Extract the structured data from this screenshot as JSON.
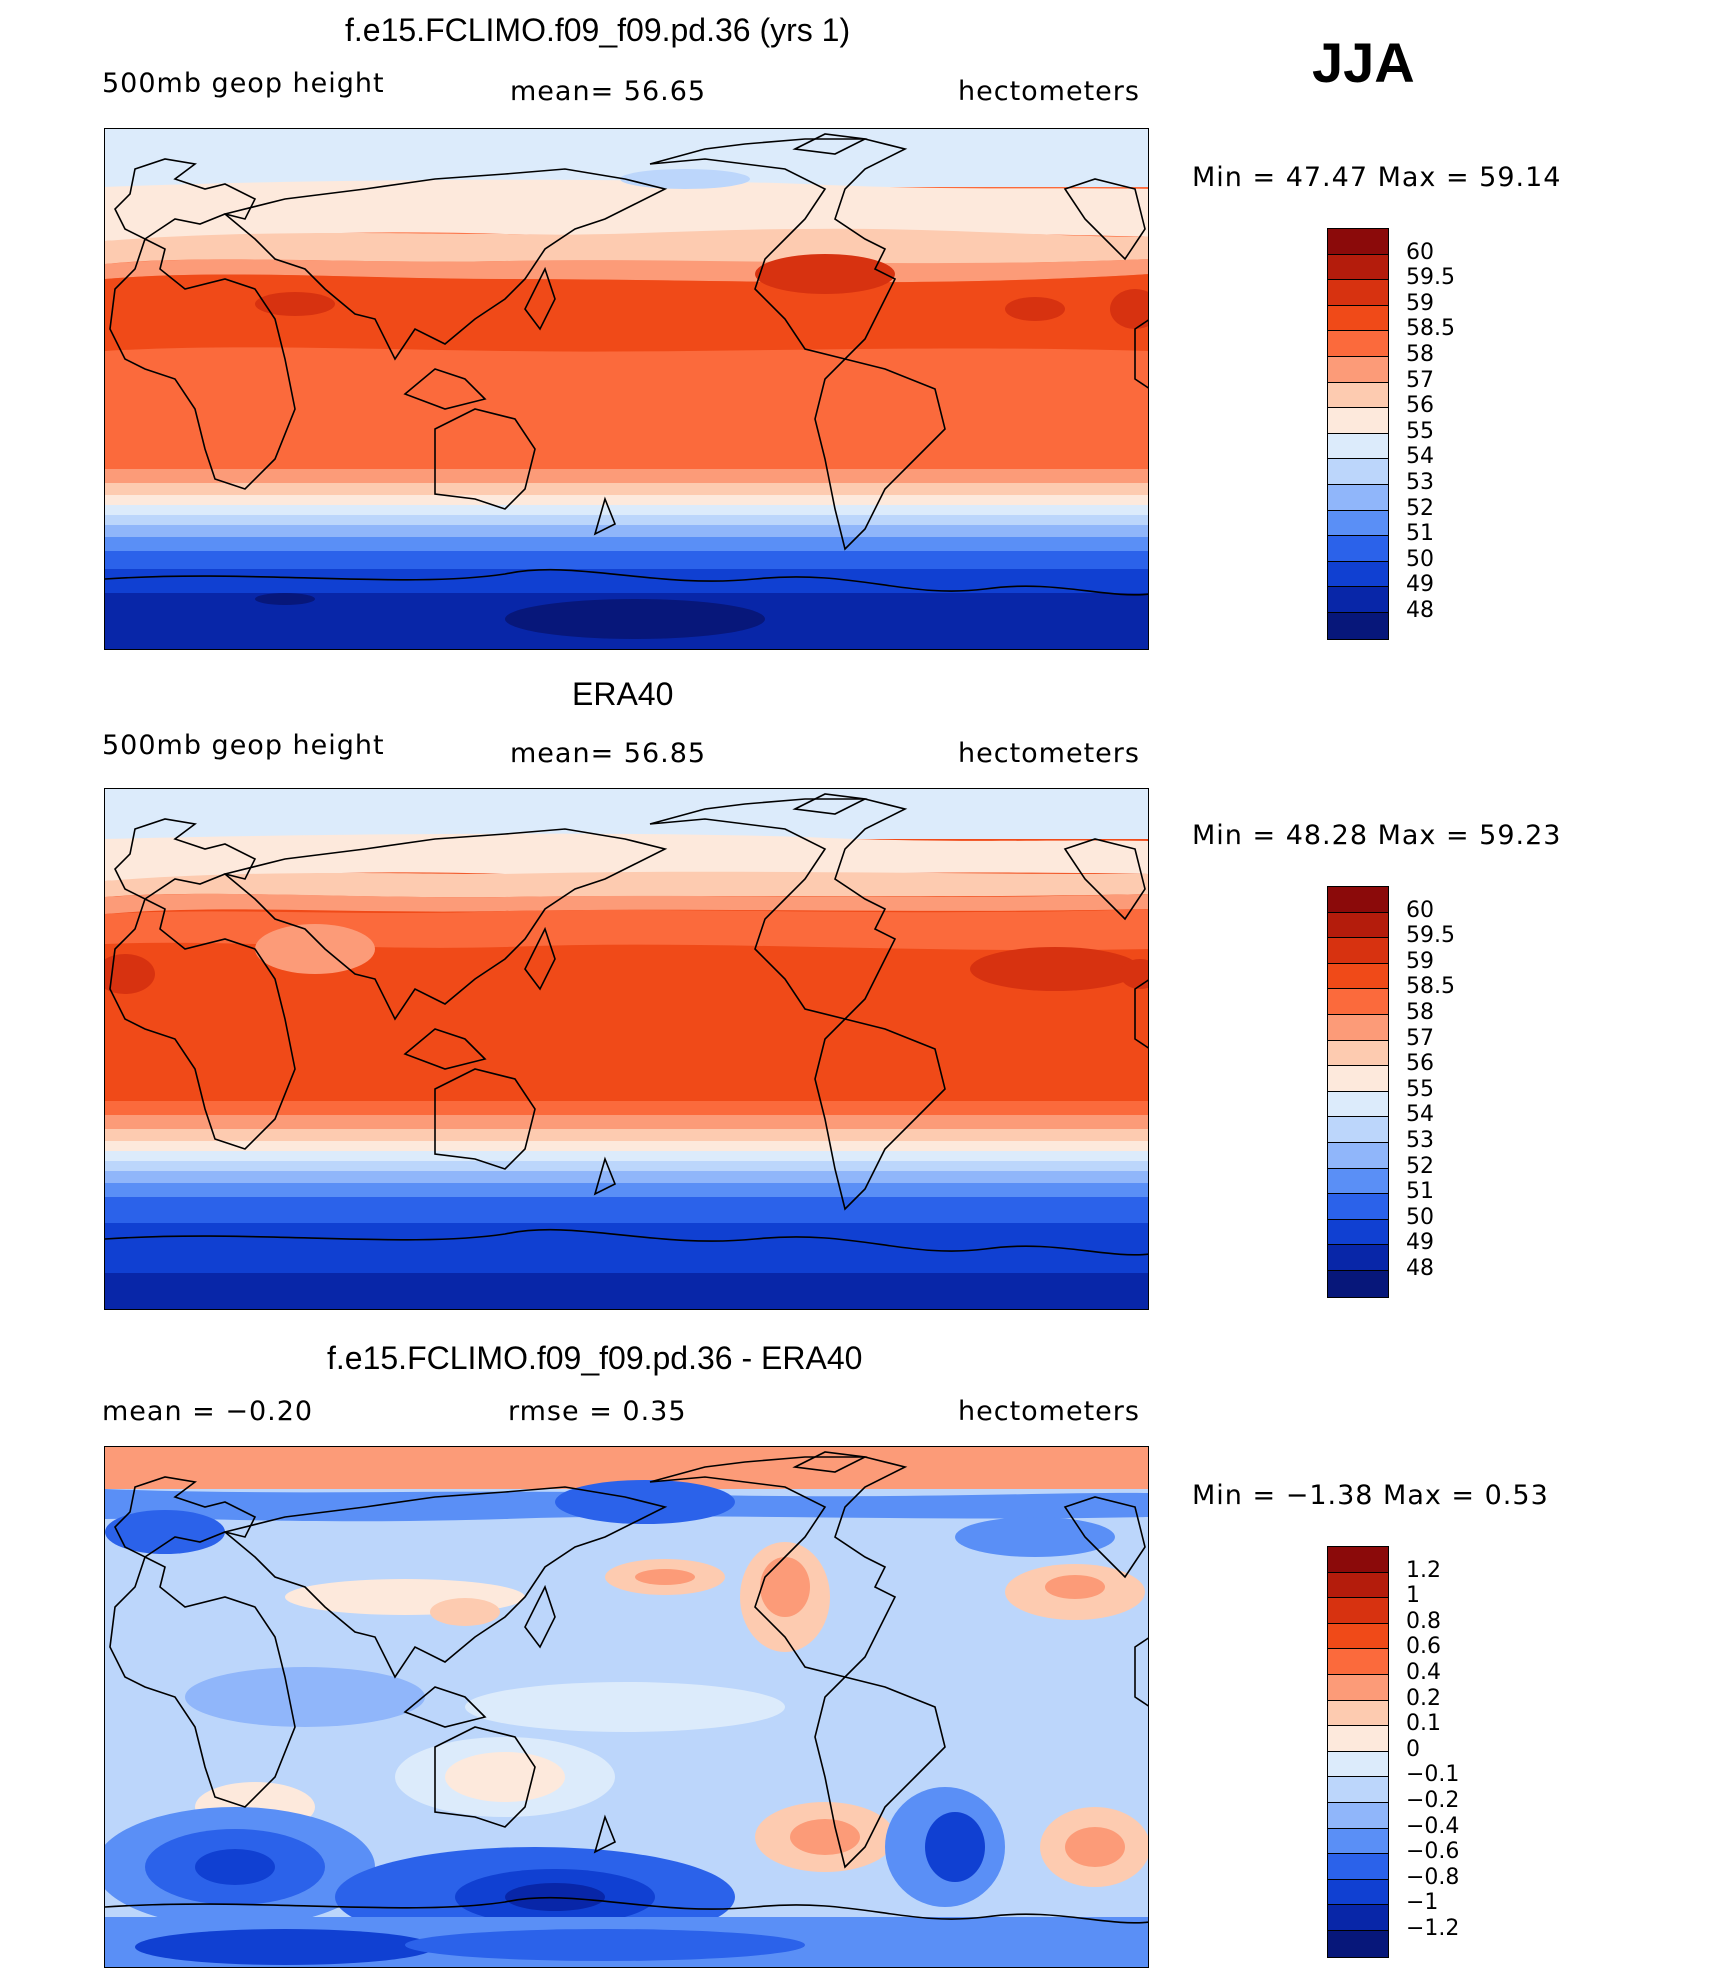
{
  "season": "JJA",
  "units": "hectometers",
  "panels": [
    {
      "title": "f.e15.FCLIMO.f09_f09.pd.36 (yrs 1)",
      "left_label": "500mb  geop  height",
      "center_label": "mean=   56.65",
      "right_label": "hectometers",
      "minmax": "Min =    47.47  Max =    59.14",
      "levels": [
        "60",
        "59.5",
        "59",
        "58.5",
        "58",
        "57",
        "56",
        "55",
        "54",
        "53",
        "52",
        "51",
        "50",
        "49",
        "48"
      ],
      "colors": [
        "#8b0a0a",
        "#b41c0c",
        "#d73210",
        "#f04a18",
        "#fb6a3c",
        "#fc9b78",
        "#fdcbb0",
        "#fde9dc",
        "#dcebfb",
        "#bcd6fb",
        "#90b6fa",
        "#5a8ff6",
        "#2b62ea",
        "#1040d2",
        "#0826a8",
        "#07177a"
      ]
    },
    {
      "title": "ERA40",
      "left_label": "500mb  geop  height",
      "center_label": "mean=   56.85",
      "right_label": "hectometers",
      "minmax": "Min =    48.28  Max =    59.23",
      "levels": [
        "60",
        "59.5",
        "59",
        "58.5",
        "58",
        "57",
        "56",
        "55",
        "54",
        "53",
        "52",
        "51",
        "50",
        "49",
        "48"
      ],
      "colors": [
        "#8b0a0a",
        "#b41c0c",
        "#d73210",
        "#f04a18",
        "#fb6a3c",
        "#fc9b78",
        "#fdcbb0",
        "#fde9dc",
        "#dcebfb",
        "#bcd6fb",
        "#90b6fa",
        "#5a8ff6",
        "#2b62ea",
        "#1040d2",
        "#0826a8",
        "#07177a"
      ]
    },
    {
      "title": "f.e15.FCLIMO.f09_f09.pd.36 - ERA40",
      "left_label": "mean =    −0.20",
      "center_label": "rmse =     0.35",
      "right_label": "hectometers",
      "minmax": "Min =    −1.38  Max =     0.53",
      "levels": [
        "1.2",
        "1",
        "0.8",
        "0.6",
        "0.4",
        "0.2",
        "0.1",
        "0",
        "−0.1",
        "−0.2",
        "−0.4",
        "−0.6",
        "−0.8",
        "−1",
        "−1.2"
      ],
      "colors": [
        "#8b0a0a",
        "#b41c0c",
        "#d73210",
        "#f04a18",
        "#fb6a3c",
        "#fc9b78",
        "#fdcbb0",
        "#fde9dc",
        "#dcebfb",
        "#bcd6fb",
        "#90b6fa",
        "#5a8ff6",
        "#2b62ea",
        "#1040d2",
        "#0826a8",
        "#07177a"
      ]
    }
  ]
}
